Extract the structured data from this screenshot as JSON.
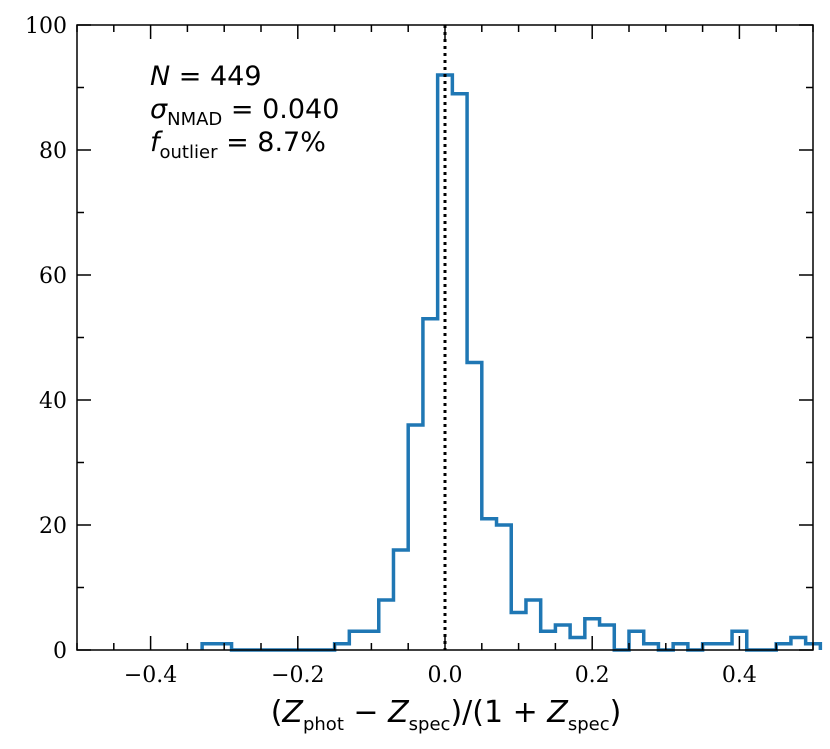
{
  "chart_data": {
    "type": "histogram",
    "title": "",
    "xlabel": {
      "open": "(",
      "z1": "Z",
      "z1_sub": "phot",
      "minus": " − ",
      "z2": "Z",
      "z2_sub": "spec",
      "mid": ")/(1 + ",
      "z3": "Z",
      "z3_sub": "spec",
      "close": ")"
    },
    "ylabel": "",
    "xlim": [
      -0.5,
      0.5
    ],
    "ylim": [
      0,
      100
    ],
    "xticks": [
      -0.4,
      -0.2,
      0.0,
      0.2,
      0.4
    ],
    "xtick_labels": [
      "−0.4",
      "−0.2",
      "0.0",
      "0.2",
      "0.4"
    ],
    "yticks": [
      0,
      20,
      40,
      60,
      80,
      100
    ],
    "ytick_labels": [
      "0",
      "20",
      "40",
      "60",
      "80",
      "100"
    ],
    "bin_width": 0.02,
    "bin_edges_start": -0.33,
    "counts": [
      1,
      1,
      0,
      0,
      0,
      0,
      0,
      0,
      0,
      1,
      3,
      3,
      8,
      16,
      36,
      53,
      92,
      89,
      46,
      21,
      20,
      6,
      8,
      3,
      4,
      2,
      5,
      4,
      0,
      3,
      1,
      0,
      1,
      0,
      1,
      1,
      3,
      0,
      0,
      1,
      2,
      1
    ],
    "reference_line": {
      "x": 0.0,
      "style": "dotted",
      "color": "#000000"
    },
    "series_color": "#1f77b4",
    "annotations": {
      "n_var": "N",
      "n_eq": " = 449",
      "sigma_var": "σ",
      "sigma_sub": "NMAD",
      "sigma_eq": " = 0.040",
      "f_var": "f",
      "f_sub": "outlier",
      "f_eq": " = 8.7%"
    }
  }
}
